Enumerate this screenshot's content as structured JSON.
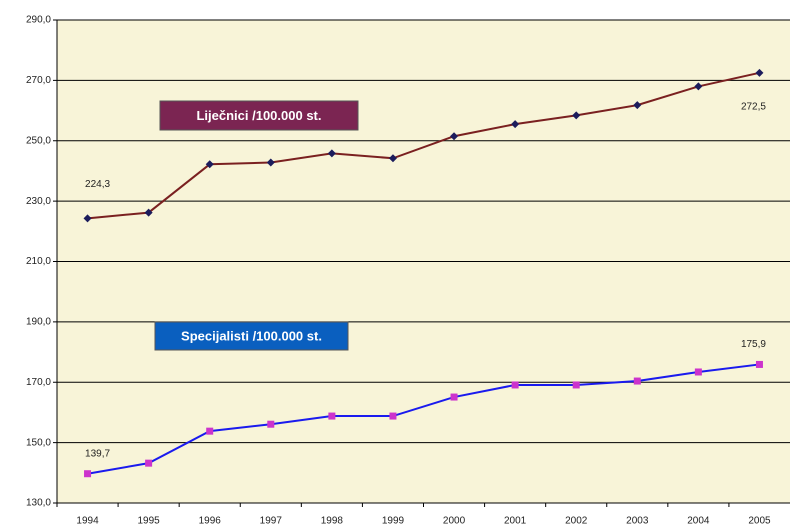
{
  "chart_data": {
    "type": "line",
    "categories": [
      "1994",
      "1995",
      "1996",
      "1997",
      "1998",
      "1999",
      "2000",
      "2001",
      "2002",
      "2003",
      "2004",
      "2005"
    ],
    "series": [
      {
        "name": "Liječnici /100.000 st.",
        "color": "#7a2020",
        "marker_color": "#1c1c5c",
        "marker": "diamond",
        "legend_color": "#7b2552",
        "values": [
          224.3,
          226.2,
          242.2,
          242.8,
          245.8,
          244.2,
          251.5,
          255.5,
          258.4,
          261.8,
          268.0,
          272.5
        ],
        "value_labels": [
          "224,3",
          null,
          null,
          null,
          null,
          null,
          null,
          null,
          null,
          null,
          null,
          "272,5"
        ]
      },
      {
        "name": "Specijalisti /100.000 st.",
        "color": "#1a1aee",
        "marker_color": "#cc33cc",
        "marker": "square",
        "legend_color": "#0a5fbf",
        "values": [
          139.7,
          143.2,
          153.8,
          156.1,
          158.8,
          158.8,
          165.1,
          169.1,
          169.1,
          170.4,
          173.4,
          175.9
        ],
        "value_labels": [
          "139,7",
          null,
          null,
          null,
          null,
          null,
          null,
          null,
          null,
          null,
          null,
          "175,9"
        ]
      }
    ],
    "ylim": [
      130,
      290
    ],
    "yticks": [
      {
        "value": 130,
        "label": "130,0"
      },
      {
        "value": 150,
        "label": "150,0"
      },
      {
        "value": 170,
        "label": "170,0"
      },
      {
        "value": 190,
        "label": "190,0"
      },
      {
        "value": 210,
        "label": "210,0"
      },
      {
        "value": 230,
        "label": "230,0"
      },
      {
        "value": 250,
        "label": "250,0"
      },
      {
        "value": 270,
        "label": "270,0"
      },
      {
        "value": 290,
        "label": "290,0"
      }
    ],
    "grid": true,
    "background": "#f8f4d8"
  }
}
